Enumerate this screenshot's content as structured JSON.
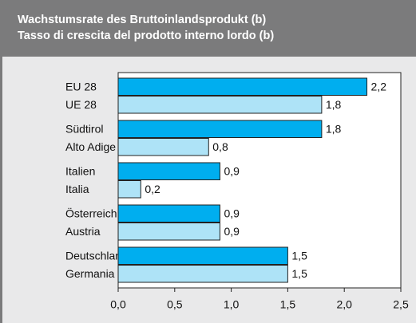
{
  "chart_data": {
    "type": "hbar",
    "title": "Wachstumsrate des Bruttoinlandsprodukt (b)",
    "subtitle": "Tasso di crescita del prodotto interno lordo (b)",
    "categories": [
      [
        "EU 28",
        "UE 28"
      ],
      [
        "Südtirol",
        "Alto Adige"
      ],
      [
        "Italien",
        "Italia"
      ],
      [
        "Österreich",
        "Austria"
      ],
      [
        "Deutschland",
        "Germania"
      ]
    ],
    "series": [
      {
        "color": "#00aeef",
        "values": [
          2.2,
          1.8,
          0.9,
          0.9,
          1.5
        ],
        "value_labels": [
          "2,2",
          "1,8",
          "0,9",
          "0,9",
          "1,5"
        ]
      },
      {
        "color": "#aee3f7",
        "values": [
          1.8,
          0.8,
          0.2,
          0.9,
          1.5
        ],
        "value_labels": [
          "1,8",
          "0,8",
          "0,2",
          "0,9",
          "1,5"
        ]
      }
    ],
    "xlim": [
      0,
      2.5
    ],
    "xticks": [
      {
        "value": 0,
        "label": "0,0"
      },
      {
        "value": 0.5,
        "label": "0,5"
      },
      {
        "value": 1,
        "label": "1,0"
      },
      {
        "value": 1.5,
        "label": "1,5"
      },
      {
        "value": 2,
        "label": "2,0"
      },
      {
        "value": 2.5,
        "label": "2,5"
      }
    ]
  }
}
